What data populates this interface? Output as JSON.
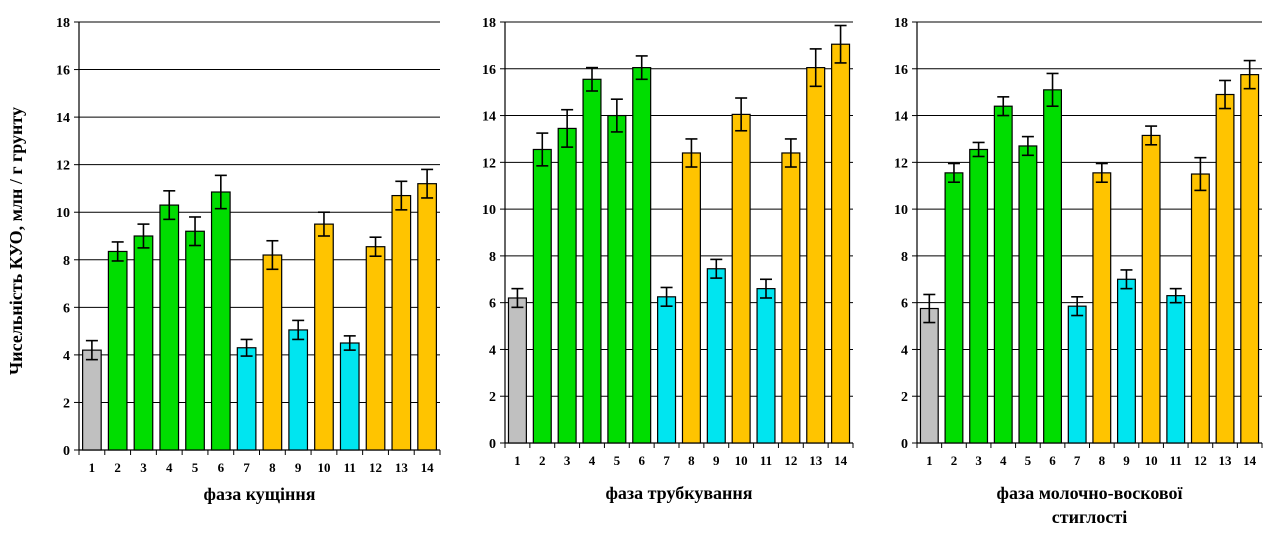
{
  "colors": {
    "control": "#c0c0c0",
    "green": "#00dd00",
    "cyan": "#00e5f0",
    "yellow": "#ffc400"
  },
  "chart_data": [
    {
      "type": "bar",
      "xlabel": "фаза кущіння",
      "ylabel": "Чисельність КУО, млн / г грунту",
      "ylim": [
        0,
        18
      ],
      "yticks": [
        0,
        2,
        4,
        6,
        8,
        10,
        12,
        14,
        16,
        18
      ],
      "grid": true,
      "categories": [
        "1",
        "2",
        "3",
        "4",
        "5",
        "6",
        "7",
        "8",
        "9",
        "10",
        "11",
        "12",
        "13",
        "14"
      ],
      "values": [
        4.2,
        8.35,
        9.0,
        10.3,
        9.2,
        10.85,
        4.3,
        8.2,
        5.05,
        9.5,
        4.5,
        8.55,
        10.7,
        11.2
      ],
      "errors": [
        0.4,
        0.4,
        0.5,
        0.6,
        0.6,
        0.7,
        0.35,
        0.6,
        0.4,
        0.5,
        0.3,
        0.4,
        0.6,
        0.6
      ],
      "bar_colors": [
        "control",
        "green",
        "green",
        "green",
        "green",
        "green",
        "cyan",
        "yellow",
        "cyan",
        "yellow",
        "cyan",
        "yellow",
        "yellow",
        "yellow"
      ]
    },
    {
      "type": "bar",
      "xlabel": "фаза трубкування",
      "ylabel": "",
      "ylim": [
        0,
        18
      ],
      "yticks": [
        0,
        2,
        4,
        6,
        8,
        10,
        12,
        14,
        16,
        18
      ],
      "grid": true,
      "categories": [
        "1",
        "2",
        "3",
        "4",
        "5",
        "6",
        "7",
        "8",
        "9",
        "10",
        "11",
        "12",
        "13",
        "14"
      ],
      "values": [
        6.2,
        12.55,
        13.45,
        15.55,
        14.0,
        16.05,
        6.25,
        12.4,
        7.45,
        14.05,
        6.6,
        12.4,
        16.05,
        17.05
      ],
      "errors": [
        0.4,
        0.7,
        0.8,
        0.5,
        0.7,
        0.5,
        0.4,
        0.6,
        0.4,
        0.7,
        0.4,
        0.6,
        0.8,
        0.8
      ],
      "bar_colors": [
        "control",
        "green",
        "green",
        "green",
        "green",
        "green",
        "cyan",
        "yellow",
        "cyan",
        "yellow",
        "cyan",
        "yellow",
        "yellow",
        "yellow"
      ]
    },
    {
      "type": "bar",
      "xlabel": "фаза молочно-воскової стиглості",
      "ylabel": "",
      "ylim": [
        0,
        18
      ],
      "yticks": [
        0,
        2,
        4,
        6,
        8,
        10,
        12,
        14,
        16,
        18
      ],
      "grid": true,
      "categories": [
        "1",
        "2",
        "3",
        "4",
        "5",
        "6",
        "7",
        "8",
        "9",
        "10",
        "11",
        "12",
        "13",
        "14"
      ],
      "values": [
        5.75,
        11.55,
        12.55,
        14.4,
        12.7,
        15.1,
        5.85,
        11.55,
        7.0,
        13.15,
        6.3,
        11.5,
        14.9,
        15.75
      ],
      "errors": [
        0.6,
        0.4,
        0.3,
        0.4,
        0.4,
        0.7,
        0.4,
        0.4,
        0.4,
        0.4,
        0.3,
        0.7,
        0.6,
        0.6
      ],
      "bar_colors": [
        "control",
        "green",
        "green",
        "green",
        "green",
        "green",
        "cyan",
        "yellow",
        "cyan",
        "yellow",
        "cyan",
        "yellow",
        "yellow",
        "yellow"
      ]
    }
  ]
}
